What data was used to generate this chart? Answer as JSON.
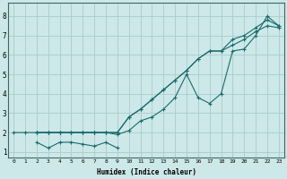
{
  "xlabel": "Humidex (Indice chaleur)",
  "ylabel": "",
  "bg_color": "#cce8e8",
  "grid_color": "#aacccc",
  "line_color": "#1a6b6b",
  "xlim": [
    -0.5,
    23.5
  ],
  "ylim": [
    0.7,
    8.7
  ],
  "yticks": [
    1,
    2,
    3,
    4,
    5,
    6,
    7,
    8
  ],
  "xticks": [
    0,
    1,
    2,
    3,
    4,
    5,
    6,
    7,
    8,
    9,
    10,
    11,
    12,
    13,
    14,
    15,
    16,
    17,
    18,
    19,
    20,
    21,
    22,
    23
  ],
  "series1_x": [
    0,
    1,
    2,
    3,
    4,
    5,
    6,
    7,
    8,
    9,
    10,
    11,
    12,
    13,
    14,
    15,
    16,
    17,
    18,
    19,
    20,
    21,
    22,
    23
  ],
  "series1_y": [
    2.0,
    2.0,
    2.0,
    2.0,
    2.0,
    2.0,
    2.0,
    2.0,
    2.0,
    1.9,
    2.1,
    2.6,
    2.8,
    3.2,
    3.8,
    5.0,
    3.8,
    3.5,
    4.0,
    6.2,
    6.3,
    7.0,
    8.0,
    7.5
  ],
  "series2_x": [
    2,
    3,
    4,
    5,
    6,
    7,
    8,
    9
  ],
  "series2_y": [
    1.5,
    1.2,
    1.5,
    1.5,
    1.4,
    1.3,
    1.5,
    1.2
  ],
  "series3_x": [
    2,
    3,
    4,
    5,
    6,
    7,
    8,
    9,
    10,
    11,
    12,
    13,
    14,
    15,
    16,
    17,
    18,
    19,
    20,
    21,
    22,
    23
  ],
  "series3_y": [
    2.0,
    2.0,
    2.0,
    2.0,
    2.0,
    2.0,
    2.0,
    2.0,
    2.8,
    3.2,
    3.7,
    4.2,
    4.7,
    5.2,
    5.8,
    6.2,
    6.2,
    6.8,
    7.0,
    7.4,
    7.8,
    7.5
  ],
  "series4_x": [
    2,
    3,
    4,
    5,
    6,
    7,
    8,
    9,
    10,
    11,
    12,
    13,
    14,
    15,
    16,
    17,
    18,
    19,
    20,
    21,
    22,
    23
  ],
  "series4_y": [
    2.0,
    2.0,
    2.0,
    2.0,
    2.0,
    2.0,
    2.0,
    2.0,
    2.8,
    3.2,
    3.7,
    4.2,
    4.7,
    5.2,
    5.8,
    6.2,
    6.2,
    6.5,
    6.8,
    7.2,
    7.5,
    7.4
  ]
}
